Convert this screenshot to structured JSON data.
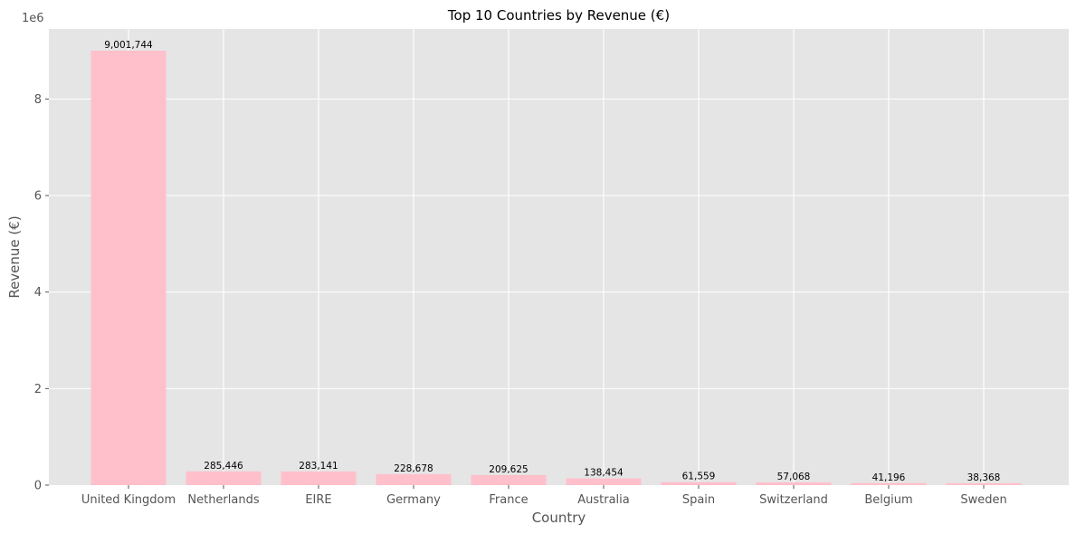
{
  "chart_data": {
    "type": "bar",
    "title": "Top 10 Countries by Revenue (€)",
    "xlabel": "Country",
    "ylabel": "Revenue (€)",
    "y_offset_label": "1e6",
    "categories": [
      "United Kingdom",
      "Netherlands",
      "EIRE",
      "Germany",
      "France",
      "Australia",
      "Spain",
      "Switzerland",
      "Belgium",
      "Sweden"
    ],
    "values": [
      9001744,
      285446,
      283141,
      228678,
      209625,
      138454,
      61559,
      57068,
      41196,
      38368
    ],
    "data_labels": [
      "9,001,744",
      "285,446",
      "283,141",
      "228,678",
      "209,625",
      "138,454",
      "61,559",
      "57,068",
      "41,196",
      "38,368"
    ],
    "ylim": [
      0,
      9451831
    ],
    "yticks": [
      0,
      2000000,
      4000000,
      6000000,
      8000000
    ],
    "ytick_labels": [
      "0",
      "2",
      "4",
      "6",
      "8"
    ],
    "grid": true,
    "colors": {
      "bar": "#ffc0cb",
      "plot_background": "#e5e5e5",
      "grid": "#ffffff",
      "text": "#555555",
      "title": "#000000"
    }
  }
}
